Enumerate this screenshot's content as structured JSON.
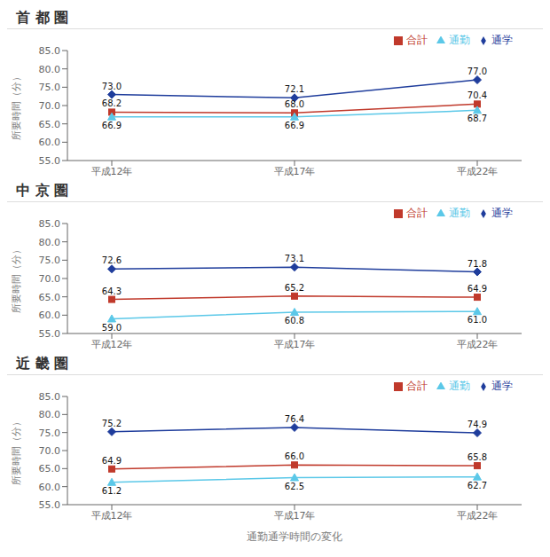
{
  "chart_data": [
    {
      "type": "line",
      "title": "首 都 圏",
      "categories": [
        "平成12年",
        "平成17年",
        "平成22年"
      ],
      "series": [
        {
          "name": "通学",
          "color": "#1f3d9c",
          "marker": "diamond",
          "values": [
            73.0,
            72.1,
            77.0
          ],
          "value_labels": [
            "73.0",
            "72.1",
            "77.0"
          ]
        },
        {
          "name": "合計",
          "color": "#c0392b",
          "marker": "square",
          "values": [
            68.2,
            68.0,
            70.4
          ],
          "value_labels": [
            "68.2",
            "68.0",
            "70.4"
          ]
        },
        {
          "name": "通勤",
          "color": "#5bc8e8",
          "marker": "triangle",
          "values": [
            66.9,
            66.9,
            68.7
          ],
          "value_labels": [
            "66.9",
            "66.9",
            "68.7"
          ]
        }
      ],
      "ylabel": "所要時間（分）",
      "ylim": [
        55,
        85
      ],
      "yticks": [
        {
          "value": 55,
          "label": "55.0"
        },
        {
          "value": 60,
          "label": "60.0"
        },
        {
          "value": 65,
          "label": "65.0"
        },
        {
          "value": 70,
          "label": "70.0"
        },
        {
          "value": 75,
          "label": "75.0"
        },
        {
          "value": 80,
          "label": "80.0"
        },
        {
          "value": 85,
          "label": "85.0"
        }
      ],
      "grid": false,
      "legend": "upper right",
      "data_labels": true
    },
    {
      "type": "line",
      "title": "中 京 圏",
      "categories": [
        "平成12年",
        "平成17年",
        "平成22年"
      ],
      "series": [
        {
          "name": "通学",
          "color": "#1f3d9c",
          "marker": "diamond",
          "values": [
            72.6,
            73.1,
            71.8
          ],
          "value_labels": [
            "72.6",
            "73.1",
            "71.8"
          ]
        },
        {
          "name": "合計",
          "color": "#c0392b",
          "marker": "square",
          "values": [
            64.3,
            65.2,
            64.9
          ],
          "value_labels": [
            "64.3",
            "65.2",
            "64.9"
          ]
        },
        {
          "name": "通勤",
          "color": "#5bc8e8",
          "marker": "triangle",
          "values": [
            59.0,
            60.8,
            61.0
          ],
          "value_labels": [
            "59.0",
            "60.8",
            "61.0"
          ]
        }
      ],
      "ylabel": "所要時間（分）",
      "ylim": [
        55,
        85
      ],
      "yticks": [
        {
          "value": 55,
          "label": "55.0"
        },
        {
          "value": 60,
          "label": "60.0"
        },
        {
          "value": 65,
          "label": "65.0"
        },
        {
          "value": 70,
          "label": "70.0"
        },
        {
          "value": 75,
          "label": "75.0"
        },
        {
          "value": 80,
          "label": "80.0"
        },
        {
          "value": 85,
          "label": "85.0"
        }
      ],
      "grid": false,
      "legend": "upper right",
      "data_labels": true
    },
    {
      "type": "line",
      "title": "近 畿 圏",
      "categories": [
        "平成12年",
        "平成17年",
        "平成22年"
      ],
      "series": [
        {
          "name": "通学",
          "color": "#1f3d9c",
          "marker": "diamond",
          "values": [
            75.2,
            76.4,
            74.9
          ],
          "value_labels": [
            "75.2",
            "76.4",
            "74.9"
          ]
        },
        {
          "name": "合計",
          "color": "#c0392b",
          "marker": "square",
          "values": [
            64.9,
            66.0,
            65.8
          ],
          "value_labels": [
            "64.9",
            "66.0",
            "65.8"
          ]
        },
        {
          "name": "通勤",
          "color": "#5bc8e8",
          "marker": "triangle",
          "values": [
            61.2,
            62.5,
            62.7
          ],
          "value_labels": [
            "61.2",
            "62.5",
            "62.7"
          ]
        }
      ],
      "xlabel": "通勤通学時間の変化",
      "ylabel": "所要時間（分）",
      "ylim": [
        55,
        85
      ],
      "yticks": [
        {
          "value": 55,
          "label": "55.0"
        },
        {
          "value": 60,
          "label": "60.0"
        },
        {
          "value": 65,
          "label": "65.0"
        },
        {
          "value": 70,
          "label": "70.0"
        },
        {
          "value": 75,
          "label": "75.0"
        },
        {
          "value": 80,
          "label": "80.0"
        },
        {
          "value": 85,
          "label": "85.0"
        }
      ],
      "grid": false,
      "legend": "upper right",
      "data_labels": true
    }
  ]
}
